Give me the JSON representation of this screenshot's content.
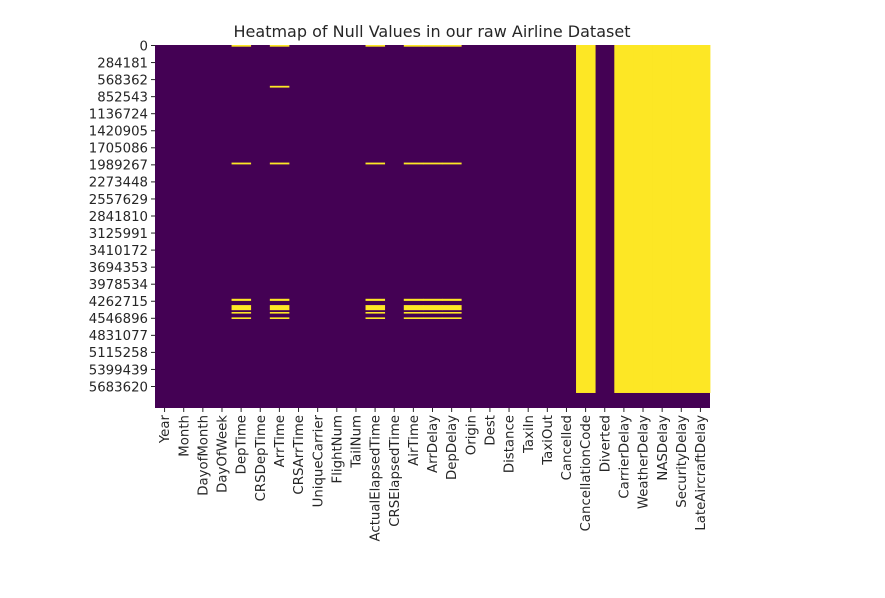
{
  "chart_data": {
    "type": "heatmap",
    "title": "Heatmap of Null Values in our raw Airline Dataset",
    "colormap": {
      "low": "#440154",
      "high": "#fde725"
    },
    "colorbar": false,
    "grid": false,
    "legend": "none",
    "n_rows_approx": 5800000,
    "columns": [
      "Year",
      "Month",
      "DayofMonth",
      "DayOfWeek",
      "DepTime",
      "CRSDepTime",
      "ArrTime",
      "CRSArrTime",
      "UniqueCarrier",
      "FlightNum",
      "TailNum",
      "ActualElapsedTime",
      "CRSElapsedTime",
      "AirTime",
      "ArrDelay",
      "DepDelay",
      "Origin",
      "Dest",
      "Distance",
      "TaxiIn",
      "TaxiOut",
      "Cancelled",
      "CancellationCode",
      "Diverted",
      "CarrierDelay",
      "WeatherDelay",
      "NASDelay",
      "SecurityDelay",
      "LateAircraftDelay"
    ],
    "y_tick_labels": [
      "0",
      "284181",
      "568362",
      "852543",
      "1136724",
      "1420905",
      "1705086",
      "1989267",
      "2273448",
      "2557629",
      "2841810",
      "3125991",
      "3410172",
      "3694353",
      "3978534",
      "4262715",
      "4546896",
      "4831077",
      "5115258",
      "5399439",
      "5683620"
    ],
    "null_regions": [
      {
        "columns": [
          "DepTime",
          "ArrTime",
          "ActualElapsedTime",
          "AirTime",
          "ArrDelay",
          "DepDelay"
        ],
        "row_start": 0,
        "row_end": 28000
      },
      {
        "columns": [
          "ArrTime"
        ],
        "row_start": 680000,
        "row_end": 710000
      },
      {
        "columns": [
          "DepTime",
          "ArrTime",
          "ActualElapsedTime",
          "AirTime",
          "ArrDelay",
          "DepDelay"
        ],
        "row_start": 1960000,
        "row_end": 1990000
      },
      {
        "columns": [
          "DepTime",
          "ArrTime",
          "ActualElapsedTime",
          "AirTime",
          "ArrDelay",
          "DepDelay"
        ],
        "row_start": 4230000,
        "row_end": 4265000
      },
      {
        "columns": [
          "DepTime",
          "ArrTime",
          "ActualElapsedTime",
          "AirTime",
          "ArrDelay",
          "DepDelay"
        ],
        "row_start": 4335000,
        "row_end": 4420000
      },
      {
        "columns": [
          "DepTime",
          "ArrTime",
          "ActualElapsedTime",
          "AirTime",
          "ArrDelay",
          "DepDelay"
        ],
        "row_start": 4450000,
        "row_end": 4470000
      },
      {
        "columns": [
          "DepTime",
          "ArrTime",
          "ActualElapsedTime",
          "AirTime",
          "ArrDelay",
          "DepDelay"
        ],
        "row_start": 4540000,
        "row_end": 4565000
      },
      {
        "columns": [
          "CancellationCode"
        ],
        "row_start": 0,
        "row_end": 5800000
      },
      {
        "columns": [
          "CarrierDelay",
          "WeatherDelay",
          "NASDelay",
          "SecurityDelay",
          "LateAircraftDelay"
        ],
        "row_start": 0,
        "row_end": 5800000
      }
    ]
  }
}
